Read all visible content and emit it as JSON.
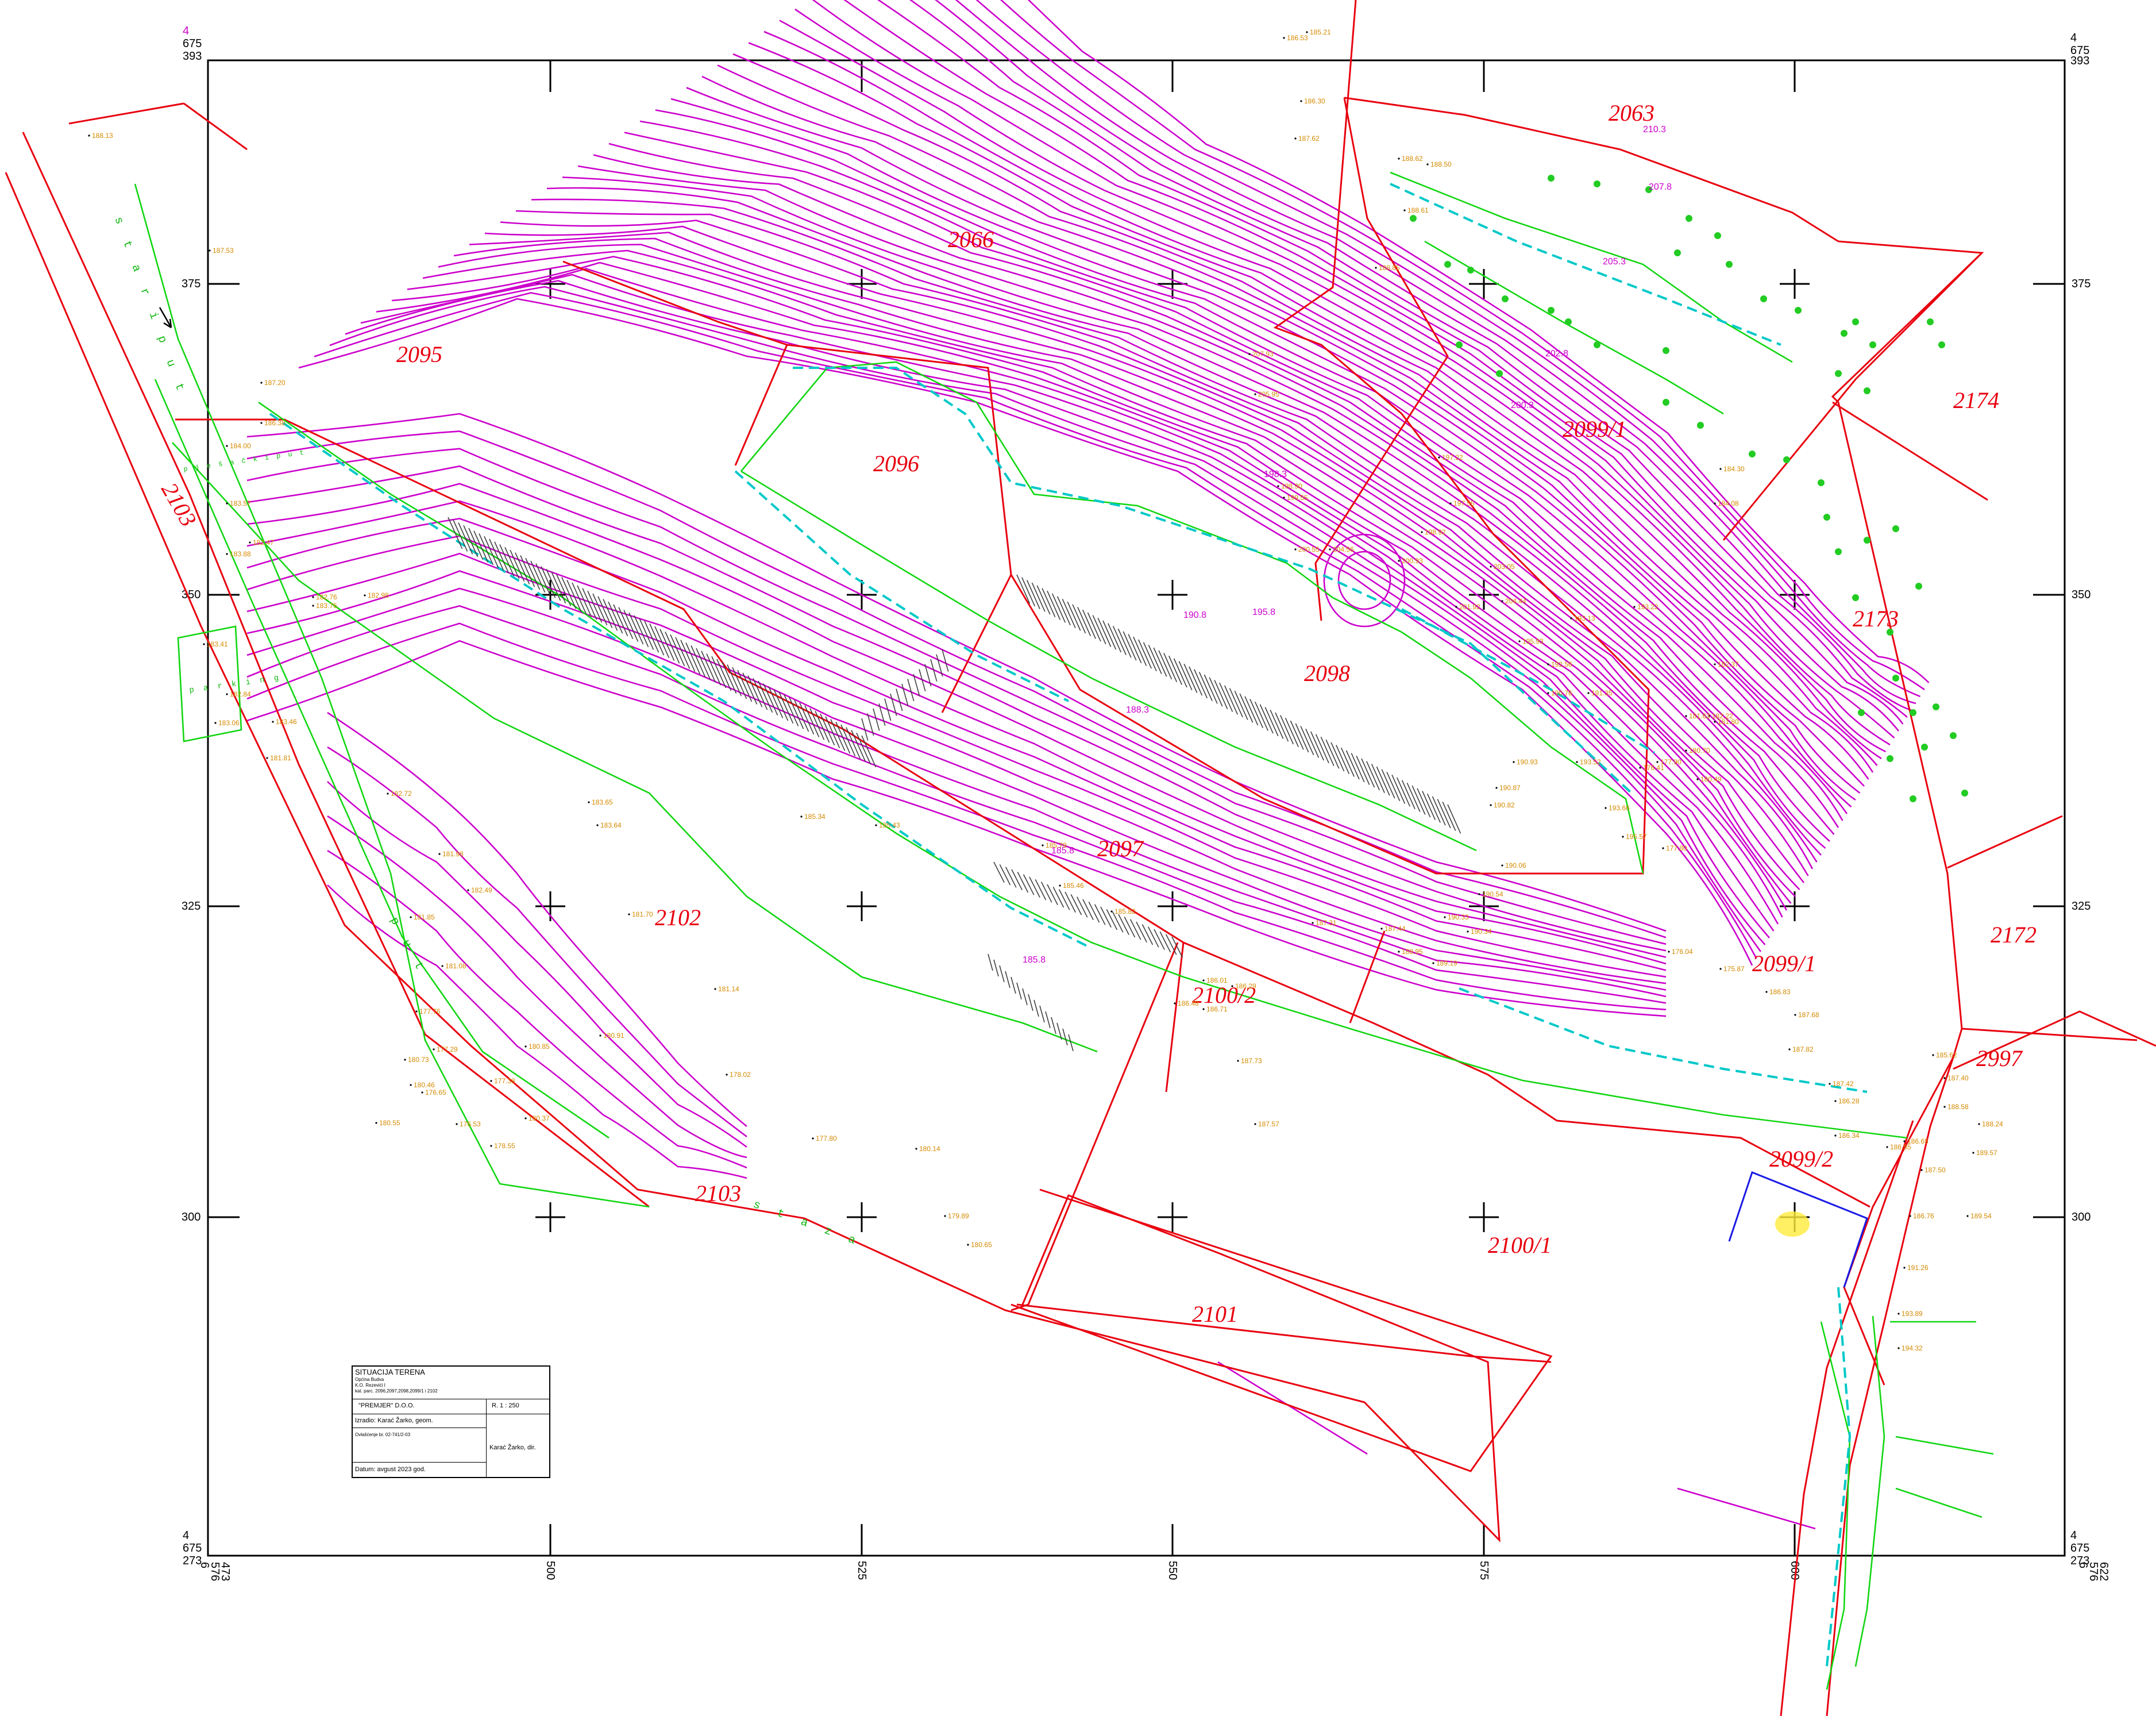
{
  "grid": {
    "x_labels": [
      "500",
      "525",
      "550",
      "575",
      "600"
    ],
    "y_labels": [
      "375",
      "350",
      "325",
      "300"
    ],
    "corner_top_left": [
      "4",
      "675",
      "393"
    ],
    "corner_top_right": [
      "4",
      "675",
      "393"
    ],
    "corner_bottom_left": [
      "4",
      "675",
      "273"
    ],
    "corner_bottom_right": [
      "4",
      "675",
      "273"
    ],
    "bottom_left_x": [
      "6",
      "576",
      "473"
    ],
    "bottom_right_x": [
      "6",
      "576",
      "622"
    ]
  },
  "parcels": [
    "2063",
    "2066",
    "2095",
    "2096",
    "2097",
    "2098",
    "2099/1",
    "2099/1",
    "2099/2",
    "2100/1",
    "2100/2",
    "2101",
    "2102",
    "2103",
    "2103",
    "2172",
    "2173",
    "2174",
    "2997"
  ],
  "road_labels": {
    "left_upper": "s t a r i   p u t",
    "left_lower": "p u t",
    "bottom": "s t a z a",
    "parking": "p a r k i n g",
    "pjesacki": "p j e š a č k i   p u t"
  },
  "heights": [
    "188.13",
    "187.53",
    "187.20",
    "186.38",
    "184.00",
    "183.57",
    "183.88",
    "182.47",
    "183.76",
    "183.41",
    "183.46",
    "182.84",
    "181.81",
    "183.06",
    "182.72",
    "181.98",
    "182.49",
    "181.85",
    "181.70",
    "181.14",
    "181.08",
    "180.73",
    "180.46",
    "180.55",
    "180.91",
    "180.85",
    "180.37",
    "180.14",
    "179.89",
    "180.65",
    "178.02",
    "177.80",
    "177.76",
    "177.29",
    "176.65",
    "176.53",
    "177.38",
    "178.55",
    "182.98",
    "182.76",
    "183.65",
    "183.64",
    "185.34",
    "185.43",
    "185.79",
    "185.46",
    "185.82",
    "186.01",
    "186.29",
    "186.48",
    "186.71",
    "187.73",
    "187.57",
    "187.31",
    "187.44",
    "188.95",
    "189.19",
    "190.33",
    "190.34",
    "190.54",
    "190.06",
    "190.82",
    "190.87",
    "190.93",
    "190.76",
    "191.35",
    "192.56",
    "193.13",
    "193.22",
    "193.52",
    "193.66",
    "195.57",
    "195.93",
    "197.22",
    "197.55",
    "198.92",
    "198.90",
    "199.55",
    "200.55",
    "200.93",
    "201.92",
    "203.05",
    "204.44",
    "204.56",
    "205.95",
    "207.93",
    "188.85",
    "188.61",
    "188.62",
    "188.50",
    "187.62",
    "186.30",
    "186.53",
    "185.21",
    "184.30",
    "184.08",
    "182.37",
    "182.22",
    "181.80",
    "181.63",
    "180.70",
    "180.49",
    "177.80",
    "177.90",
    "176.41",
    "176.04",
    "175.87",
    "186.83",
    "187.68",
    "187.82",
    "187.42",
    "186.28",
    "186.34",
    "186.55",
    "187.50",
    "186.76",
    "186.65",
    "185.62",
    "187.40",
    "188.58",
    "188.24",
    "189.57",
    "189.54",
    "191.26",
    "193.89",
    "194.32"
  ],
  "contour_labels": [
    "210.3",
    "207.8",
    "205.3",
    "202.8",
    "200.3",
    "198.3",
    "195.8",
    "190.8",
    "188.3",
    "185.8",
    "185.8"
  ],
  "title_block": {
    "title": "SITUACIJA TERENA",
    "line1": "Općina Budva",
    "line2": "K.O. Rezevići I",
    "line3": "kat. parc. 2096,2097,2098,2099/1 i 2102",
    "company": "\"PREMJER\" D.O.O.",
    "scale": "R. 1 : 250",
    "author": "Izradio: Karać Žarko, geom.",
    "license": "Ovlašćenje br. 02-741/2-03",
    "director": "Karać Žarko, dir.",
    "date": "Datum: avgust 2023 god."
  },
  "colors": {
    "parcel": "#e8000f",
    "contour": "#cc00cc",
    "road": "#12d612",
    "ditch": "#00c8c8",
    "height_text": "#d48a00",
    "frame": "#000000"
  }
}
